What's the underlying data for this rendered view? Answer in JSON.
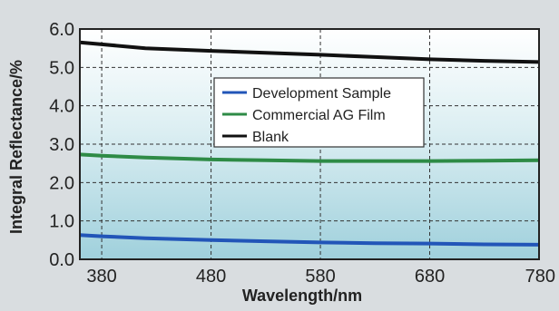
{
  "chart_data": {
    "type": "line",
    "title": "",
    "xlabel": "Wavelength/nm",
    "ylabel": "Integral Reflectance/%",
    "xlim": [
      360,
      780
    ],
    "ylim": [
      0.0,
      6.0
    ],
    "x_ticks": [
      380,
      480,
      580,
      680,
      780
    ],
    "y_ticks": [
      0.0,
      1.0,
      2.0,
      3.0,
      4.0,
      5.0,
      6.0
    ],
    "x_tick_labels": [
      "380",
      "480",
      "580",
      "680",
      "780"
    ],
    "y_tick_labels": [
      "0.0",
      "1.0",
      "2.0",
      "3.0",
      "4.0",
      "5.0",
      "6.0"
    ],
    "grid": true,
    "legend_position": "upper-middle",
    "series": [
      {
        "name": "Development Sample",
        "color": "#2255b8",
        "x": [
          360,
          380,
          420,
          480,
          530,
          580,
          630,
          680,
          730,
          780
        ],
        "y": [
          0.63,
          0.6,
          0.55,
          0.5,
          0.47,
          0.44,
          0.42,
          0.41,
          0.39,
          0.38
        ]
      },
      {
        "name": "Commercial AG Film",
        "color": "#2e8b46",
        "x": [
          360,
          380,
          420,
          480,
          530,
          580,
          630,
          680,
          730,
          780
        ],
        "y": [
          2.73,
          2.7,
          2.65,
          2.6,
          2.58,
          2.56,
          2.56,
          2.56,
          2.57,
          2.58
        ]
      },
      {
        "name": "Blank",
        "color": "#111111",
        "x": [
          360,
          380,
          420,
          480,
          530,
          580,
          630,
          680,
          730,
          780
        ],
        "y": [
          5.65,
          5.6,
          5.5,
          5.43,
          5.38,
          5.33,
          5.27,
          5.21,
          5.17,
          5.14
        ]
      }
    ]
  }
}
